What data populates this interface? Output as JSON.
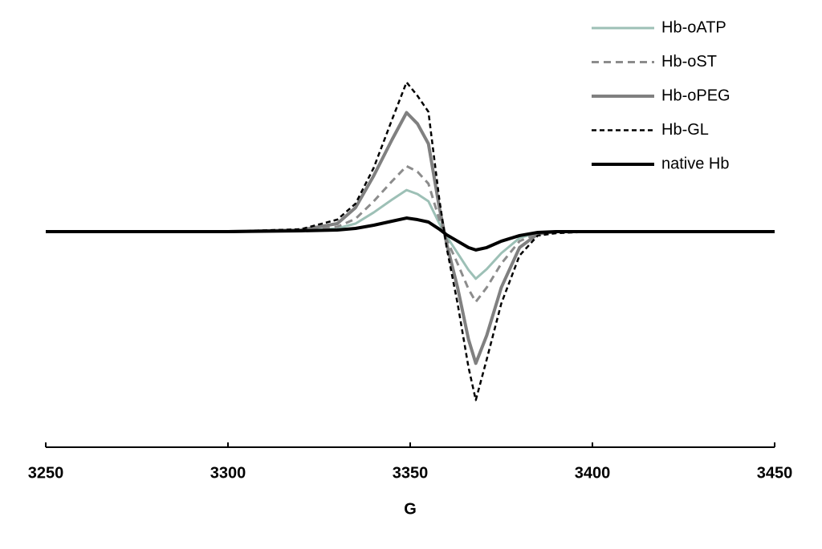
{
  "chart_data": {
    "type": "line",
    "x_label": "G",
    "x": [
      3250,
      3300,
      3320,
      3330,
      3335,
      3340,
      3345,
      3349,
      3352,
      3355,
      3358,
      3360,
      3363,
      3366,
      3368,
      3371,
      3375,
      3380,
      3385,
      3390,
      3400,
      3450
    ],
    "xlim": [
      3250,
      3450
    ],
    "xticks": [
      3250,
      3300,
      3350,
      3400,
      3450
    ],
    "ylim": [
      -2.7,
      2.9
    ],
    "legend": "top-right",
    "series": [
      {
        "name": "Hb-oATP",
        "color": "#9dc0b6",
        "width": 3,
        "dash": "none",
        "values": [
          0,
          0,
          0.01,
          0.04,
          0.1,
          0.24,
          0.4,
          0.52,
          0.47,
          0.38,
          0.1,
          -0.06,
          -0.27,
          -0.48,
          -0.59,
          -0.47,
          -0.27,
          -0.08,
          -0.01,
          0,
          0,
          0
        ]
      },
      {
        "name": "Hb-oST",
        "color": "#8c8c8c",
        "width": 3,
        "dash": "9 6",
        "values": [
          0,
          0,
          0.01,
          0.06,
          0.16,
          0.38,
          0.63,
          0.82,
          0.75,
          0.6,
          0.15,
          -0.1,
          -0.4,
          -0.72,
          -0.88,
          -0.7,
          -0.4,
          -0.12,
          -0.02,
          0,
          0,
          0
        ]
      },
      {
        "name": "Hb-oPEG",
        "color": "#808080",
        "width": 4,
        "dash": "none",
        "values": [
          0,
          0,
          0.02,
          0.1,
          0.3,
          0.7,
          1.15,
          1.49,
          1.35,
          1.1,
          0.3,
          -0.15,
          -0.7,
          -1.35,
          -1.65,
          -1.3,
          -0.7,
          -0.2,
          -0.03,
          0,
          0,
          0
        ]
      },
      {
        "name": "Hb-GL",
        "color": "#000000",
        "width": 2.5,
        "dash": "6 4",
        "values": [
          0,
          0,
          0.03,
          0.15,
          0.35,
          0.8,
          1.4,
          1.87,
          1.7,
          1.5,
          0.4,
          -0.2,
          -0.9,
          -1.7,
          -2.11,
          -1.6,
          -0.9,
          -0.3,
          -0.05,
          -0.02,
          0,
          0
        ]
      },
      {
        "name": "native Hb",
        "color": "#000000",
        "width": 4,
        "dash": "none",
        "values": [
          0,
          0,
          0.01,
          0.02,
          0.04,
          0.08,
          0.13,
          0.17,
          0.15,
          0.12,
          0.03,
          -0.04,
          -0.12,
          -0.2,
          -0.23,
          -0.2,
          -0.12,
          -0.05,
          -0.01,
          0,
          0,
          0
        ]
      }
    ]
  }
}
